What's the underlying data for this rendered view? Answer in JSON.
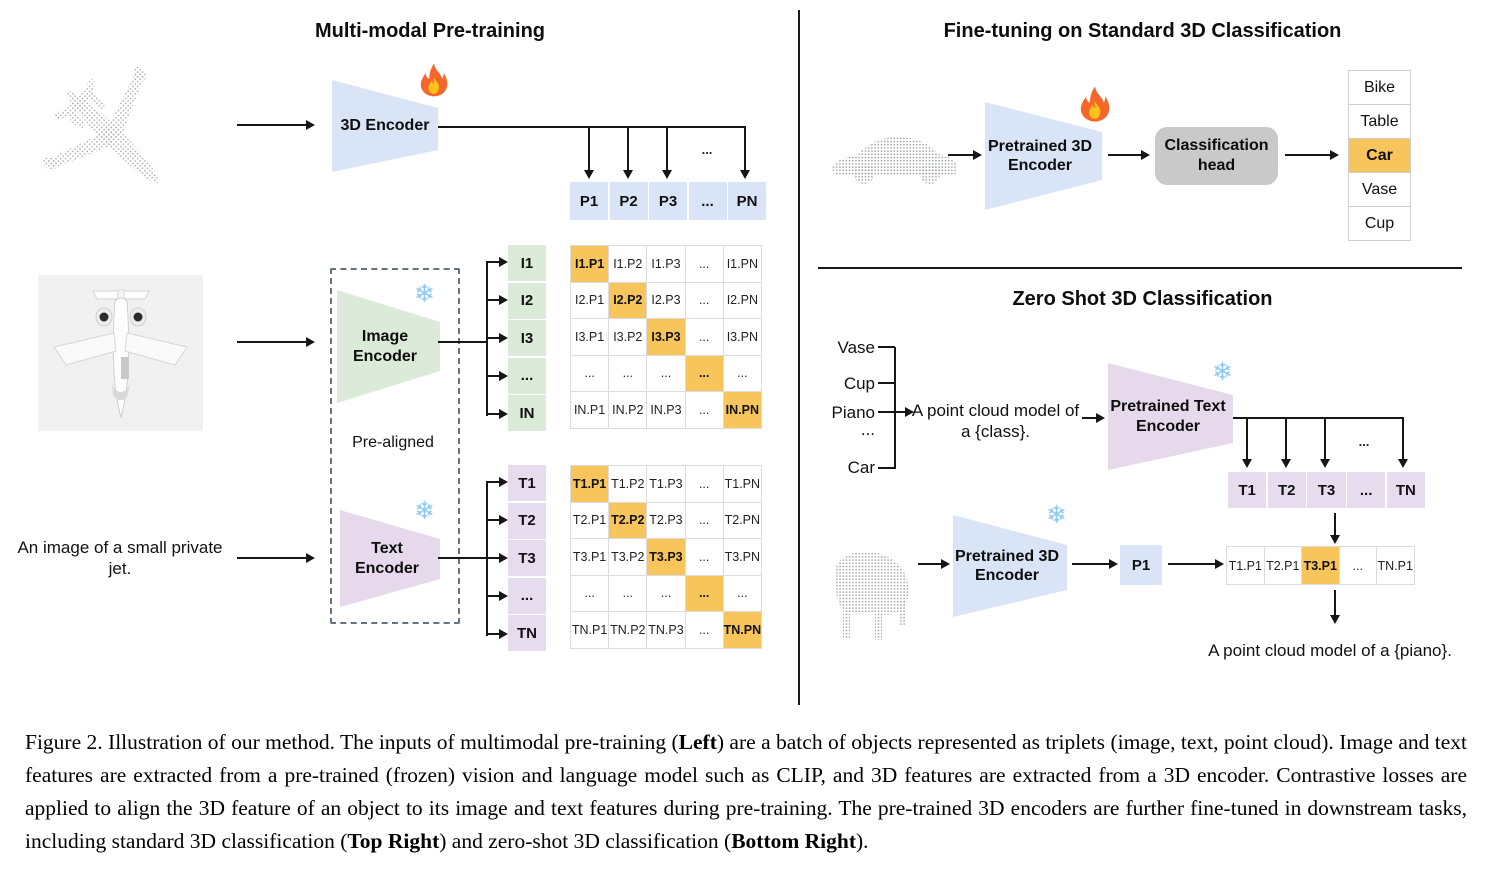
{
  "pretrain": {
    "title": "Multi-modal Pre-training",
    "encoder3d_label": "3D Encoder",
    "image_encoder_label": "Image Encoder",
    "text_encoder_label": "Text Encoder",
    "prealigned": "Pre-aligned",
    "input_caption": "An image of a small private jet.",
    "ellipsis": "...",
    "p_row": [
      "P1",
      "P2",
      "P3",
      "...",
      "PN"
    ],
    "i_labels": [
      "I1",
      "I2",
      "I3",
      "...",
      "IN"
    ],
    "i_matrix": [
      [
        "I1.P1",
        "I1.P2",
        "I1.P3",
        "...",
        "I1.PN"
      ],
      [
        "I2.P1",
        "I2.P2",
        "I2.P3",
        "...",
        "I2.PN"
      ],
      [
        "I3.P1",
        "I3.P2",
        "I3.P3",
        "...",
        "I3.PN"
      ],
      [
        "...",
        "...",
        "...",
        "...",
        "..."
      ],
      [
        "IN.P1",
        "IN.P2",
        "IN.P3",
        "...",
        "IN.PN"
      ]
    ],
    "t_labels": [
      "T1",
      "T2",
      "T3",
      "...",
      "TN"
    ],
    "t_matrix": [
      [
        "T1.P1",
        "T1.P2",
        "T1.P3",
        "...",
        "T1.PN"
      ],
      [
        "T2.P1",
        "T2.P2",
        "T2.P3",
        "...",
        "T2.PN"
      ],
      [
        "T3.P1",
        "T3.P2",
        "T3.P3",
        "...",
        "T3.PN"
      ],
      [
        "...",
        "...",
        "...",
        "...",
        "..."
      ],
      [
        "TN.P1",
        "TN.P2",
        "TN.P3",
        "...",
        "TN.PN"
      ]
    ]
  },
  "finetune": {
    "title": "Fine-tuning on Standard 3D Classification",
    "encoder_label": "Pretrained 3D Encoder",
    "head_label": "Classification head",
    "classes": [
      "Bike",
      "Table",
      "Car",
      "Vase",
      "Cup"
    ],
    "predicted_class": "Car"
  },
  "zeroshot": {
    "title": "Zero Shot 3D Classification",
    "classes": [
      "Vase",
      "Cup",
      "Piano",
      "...",
      "Car"
    ],
    "prompt_line1": "A point cloud model of",
    "prompt_line2": "a {class}.",
    "text_encoder_label": "Pretrained Text Encoder",
    "encoder_label": "Pretrained 3D Encoder",
    "p_cell": "P1",
    "t_row": [
      "T1",
      "T2",
      "T3",
      "...",
      "TN"
    ],
    "sim_row": [
      "T1.P1",
      "T2.P1",
      "T3.P1",
      "...",
      "TN.P1"
    ],
    "highlighted_sim": "T3.P1",
    "ellipsis": "...",
    "result": "A point cloud model of a {piano}."
  },
  "icons": {
    "snowflake": "❄",
    "fire": "flame"
  },
  "colors": {
    "encoder_blue": "#d9e4f7",
    "encoder_green": "#dcead9",
    "encoder_purple": "#e5d9eb",
    "highlight_orange": "#f8c55c",
    "head_gray": "#c9c9c9"
  },
  "caption": {
    "segments": [
      {
        "t": "Figure 2. Illustration of our method. The inputs of multimodal pre-training (",
        "b": false
      },
      {
        "t": "Left",
        "b": true
      },
      {
        "t": ") are a batch of objects represented as triplets (image, text, point cloud).  Image and text features are extracted from a pre-trained (frozen) vision and language model such as CLIP, and 3D features are extracted from a 3D encoder.  Contrastive losses are applied to align the 3D feature of an object to its image and text features during pre-training.  The pre-trained 3D encoders are further fine-tuned in downstream tasks, including standard 3D classification (",
        "b": false
      },
      {
        "t": "Top Right",
        "b": true
      },
      {
        "t": ") and zero-shot 3D classification (",
        "b": false
      },
      {
        "t": "Bottom Right",
        "b": true
      },
      {
        "t": ").",
        "b": false
      }
    ]
  }
}
